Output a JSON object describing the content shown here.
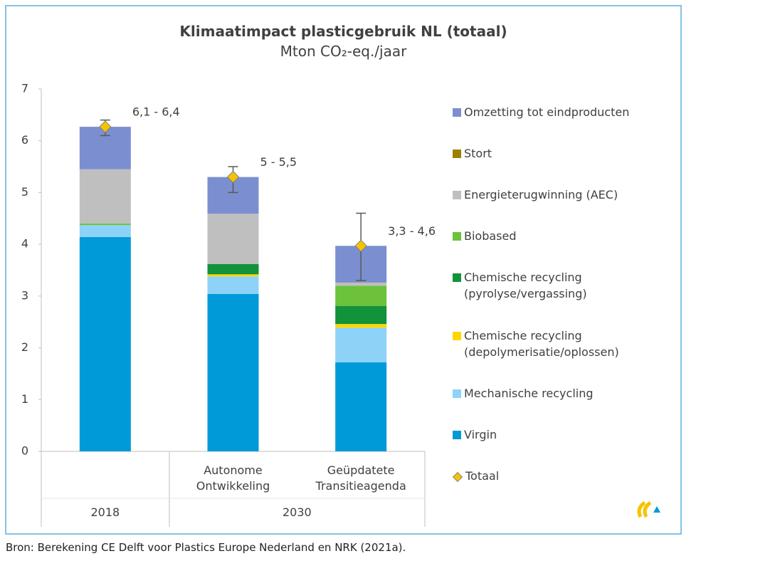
{
  "chart_data": {
    "type": "stacked_bar",
    "title": "Klimaatimpact plasticgebruik NL (totaal)",
    "subtitle": "Mton CO₂-eq./jaar",
    "categories": [
      null,
      "Autonome\nOntwikkeling",
      "Geüpdatete\nTransitieagenda"
    ],
    "groups": [
      {
        "label": "2018",
        "span": 1
      },
      {
        "label": "2030",
        "span": 2
      }
    ],
    "ylim": [
      0,
      7
    ],
    "yticks": [
      0,
      1,
      2,
      3,
      4,
      5,
      6,
      7
    ],
    "grid": false,
    "series": [
      {
        "name": "Virgin",
        "color": "#009ad8",
        "values": [
          4.14,
          3.04,
          1.72
        ]
      },
      {
        "name": "Mechanische recycling",
        "color": "#8ed3f7",
        "values": [
          0.23,
          0.34,
          0.67
        ]
      },
      {
        "name": "Chemische recycling\n(depolymerisatie/oplossen)",
        "color": "#ffd700",
        "values": [
          0,
          0.04,
          0.07
        ]
      },
      {
        "name": "Chemische recycling\n(pyrolyse/vergassing)",
        "color": "#12923a",
        "values": [
          0,
          0.2,
          0.35
        ]
      },
      {
        "name": "Biobased",
        "color": "#6cc23a",
        "values": [
          0.03,
          0,
          0.39
        ]
      },
      {
        "name": "Energieterugwinning (AEC)",
        "color": "#bfbfbf",
        "values": [
          1.05,
          0.97,
          0.06
        ]
      },
      {
        "name": "Stort",
        "color": "#9c7f00",
        "values": [
          0,
          0,
          0
        ]
      },
      {
        "name": "Omzetting tot eindproducten",
        "color": "#7b8fd0",
        "values": [
          0.82,
          0.71,
          0.71
        ]
      }
    ],
    "total": {
      "name": "Totaal",
      "color": "#f5c400",
      "values": [
        6.27,
        5.3,
        3.97
      ],
      "err_low": [
        6.1,
        5.0,
        3.3
      ],
      "err_high": [
        6.4,
        5.5,
        4.6
      ],
      "value_labels": [
        "6,1 - 6,4",
        "5 - 5,5",
        "3,3 - 4,6"
      ]
    },
    "source": "Bron: Berekening CE Delft voor Plastics Europe Nederland en NRK (2021a)."
  }
}
